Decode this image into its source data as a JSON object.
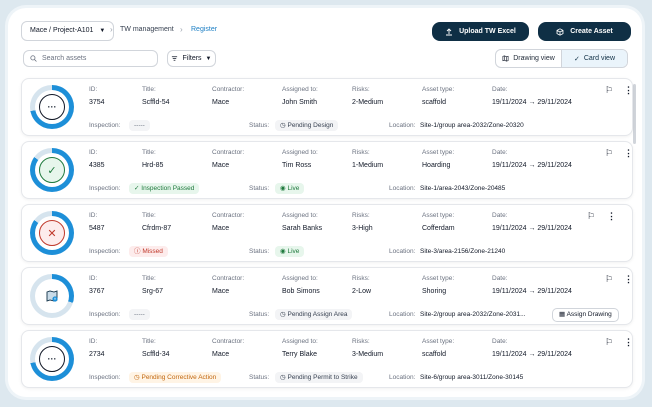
{
  "header": {
    "project": "Mace / Project-A101",
    "breadcrumb": [
      "TW management",
      "Register"
    ],
    "upload_label": "Upload TW Excel",
    "create_label": "Create Asset"
  },
  "toolbar": {
    "search_placeholder": "Search assets",
    "filters_label": "Filters",
    "drawing_view_label": "Drawing view",
    "card_view_label": "Card view"
  },
  "labels": {
    "id": "ID:",
    "title": "Title:",
    "contractor": "Contractor:",
    "assigned": "Assigned to:",
    "risks": "Risks:",
    "asset_type": "Asset type:",
    "date": "Date:",
    "inspection": "Inspection:",
    "status": "Status:",
    "location": "Location:"
  },
  "assets": [
    {
      "id": "3754",
      "title": "Scffld-54",
      "contractor": "Mace",
      "assigned": "John Smith",
      "risk": "2-Medium",
      "asset_type": "scaffold",
      "date": "19/11/2024 → 29/11/2024",
      "inspection": "-----",
      "status": "Pending Design",
      "location": "Site-1/group area-2032/Zone-20320",
      "ring_color": "#1d8fd8",
      "ring_progress": 0.72
    },
    {
      "id": "4385",
      "title": "Hrd-85",
      "contractor": "Mace",
      "assigned": "Tim Ross",
      "risk": "1-Medium",
      "asset_type": "Hoarding",
      "date": "19/11/2024 → 29/11/2024",
      "inspection": "Inspection Passed",
      "status": "Live",
      "location": "Site-1/area-2043/Zone-20485",
      "ring_color": "#1d8fd8",
      "ring_progress": 0.85
    },
    {
      "id": "5487",
      "title": "Cfrdm-87",
      "contractor": "Mace",
      "assigned": "Sarah Banks",
      "risk": "3-High",
      "asset_type": "Cofferdam",
      "date": "19/11/2024 → 29/11/2024",
      "inspection": "Missed",
      "status": "Live",
      "location": "Site-3/area-2156/Zone-21240",
      "ring_color": "#1d8fd8",
      "ring_progress": 0.85
    },
    {
      "id": "3767",
      "title": "Srg-67",
      "contractor": "Mace",
      "assigned": "Bob Simons",
      "risk": "2-Low",
      "asset_type": "Shoring",
      "date": "19/11/2024 → 29/11/2024",
      "inspection": "-----",
      "status": "Pending Assign Area",
      "location": "Site-2/group area-2032/Zone-2031...",
      "action": "Assign Drawing",
      "ring_color": "#1d8fd8",
      "ring_progress": 0.3
    },
    {
      "id": "2734",
      "title": "Scffld-34",
      "contractor": "Mace",
      "assigned": "Terry Blake",
      "risk": "3-Medium",
      "asset_type": "scaffold",
      "date": "19/11/2024 → 29/11/2024",
      "inspection": "Pending Corrective Action",
      "status": "Pending Permit to Strike",
      "location": "Site-6/group area-3011/Zone-30145",
      "ring_color": "#1d8fd8",
      "ring_progress": 0.72
    }
  ]
}
